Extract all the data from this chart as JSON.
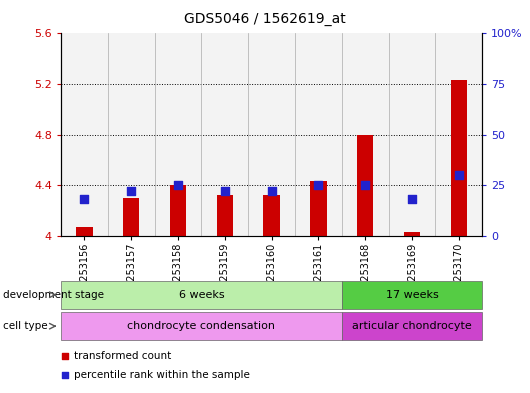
{
  "title": "GDS5046 / 1562619_at",
  "samples": [
    "GSM1253156",
    "GSM1253157",
    "GSM1253158",
    "GSM1253159",
    "GSM1253160",
    "GSM1253161",
    "GSM1253168",
    "GSM1253169",
    "GSM1253170"
  ],
  "red_values": [
    4.07,
    4.3,
    4.4,
    4.32,
    4.32,
    4.43,
    4.8,
    4.03,
    5.23
  ],
  "blue_values": [
    18,
    22,
    25,
    22,
    22,
    25,
    25,
    18,
    30
  ],
  "ylim_left": [
    4.0,
    5.6
  ],
  "ylim_right": [
    0,
    100
  ],
  "yticks_left": [
    4.0,
    4.4,
    4.8,
    5.2,
    5.6
  ],
  "yticks_right": [
    0,
    25,
    50,
    75,
    100
  ],
  "ytick_labels_left": [
    "4",
    "4.4",
    "4.8",
    "5.2",
    "5.6"
  ],
  "ytick_labels_right": [
    "0",
    "25",
    "50",
    "75",
    "100%"
  ],
  "gridlines": [
    4.4,
    4.8,
    5.2
  ],
  "bar_color": "#cc0000",
  "dot_color": "#2222cc",
  "dev_stage_groups": [
    {
      "label": "6 weeks",
      "start": 0,
      "end": 5,
      "color": "#bbeeaa"
    },
    {
      "label": "17 weeks",
      "start": 6,
      "end": 8,
      "color": "#55cc44"
    }
  ],
  "cell_type_groups": [
    {
      "label": "chondrocyte condensation",
      "start": 0,
      "end": 5,
      "color": "#ee99ee"
    },
    {
      "label": "articular chondrocyte",
      "start": 6,
      "end": 8,
      "color": "#cc44cc"
    }
  ],
  "legend_items": [
    {
      "label": "transformed count",
      "color": "#cc0000"
    },
    {
      "label": "percentile rank within the sample",
      "color": "#2222cc"
    }
  ],
  "dev_stage_label": "development stage",
  "cell_type_label": "cell type",
  "bar_width": 0.35,
  "dot_size": 30,
  "col_bg_color": "#dddddd",
  "separator_color": "#aaaaaa"
}
